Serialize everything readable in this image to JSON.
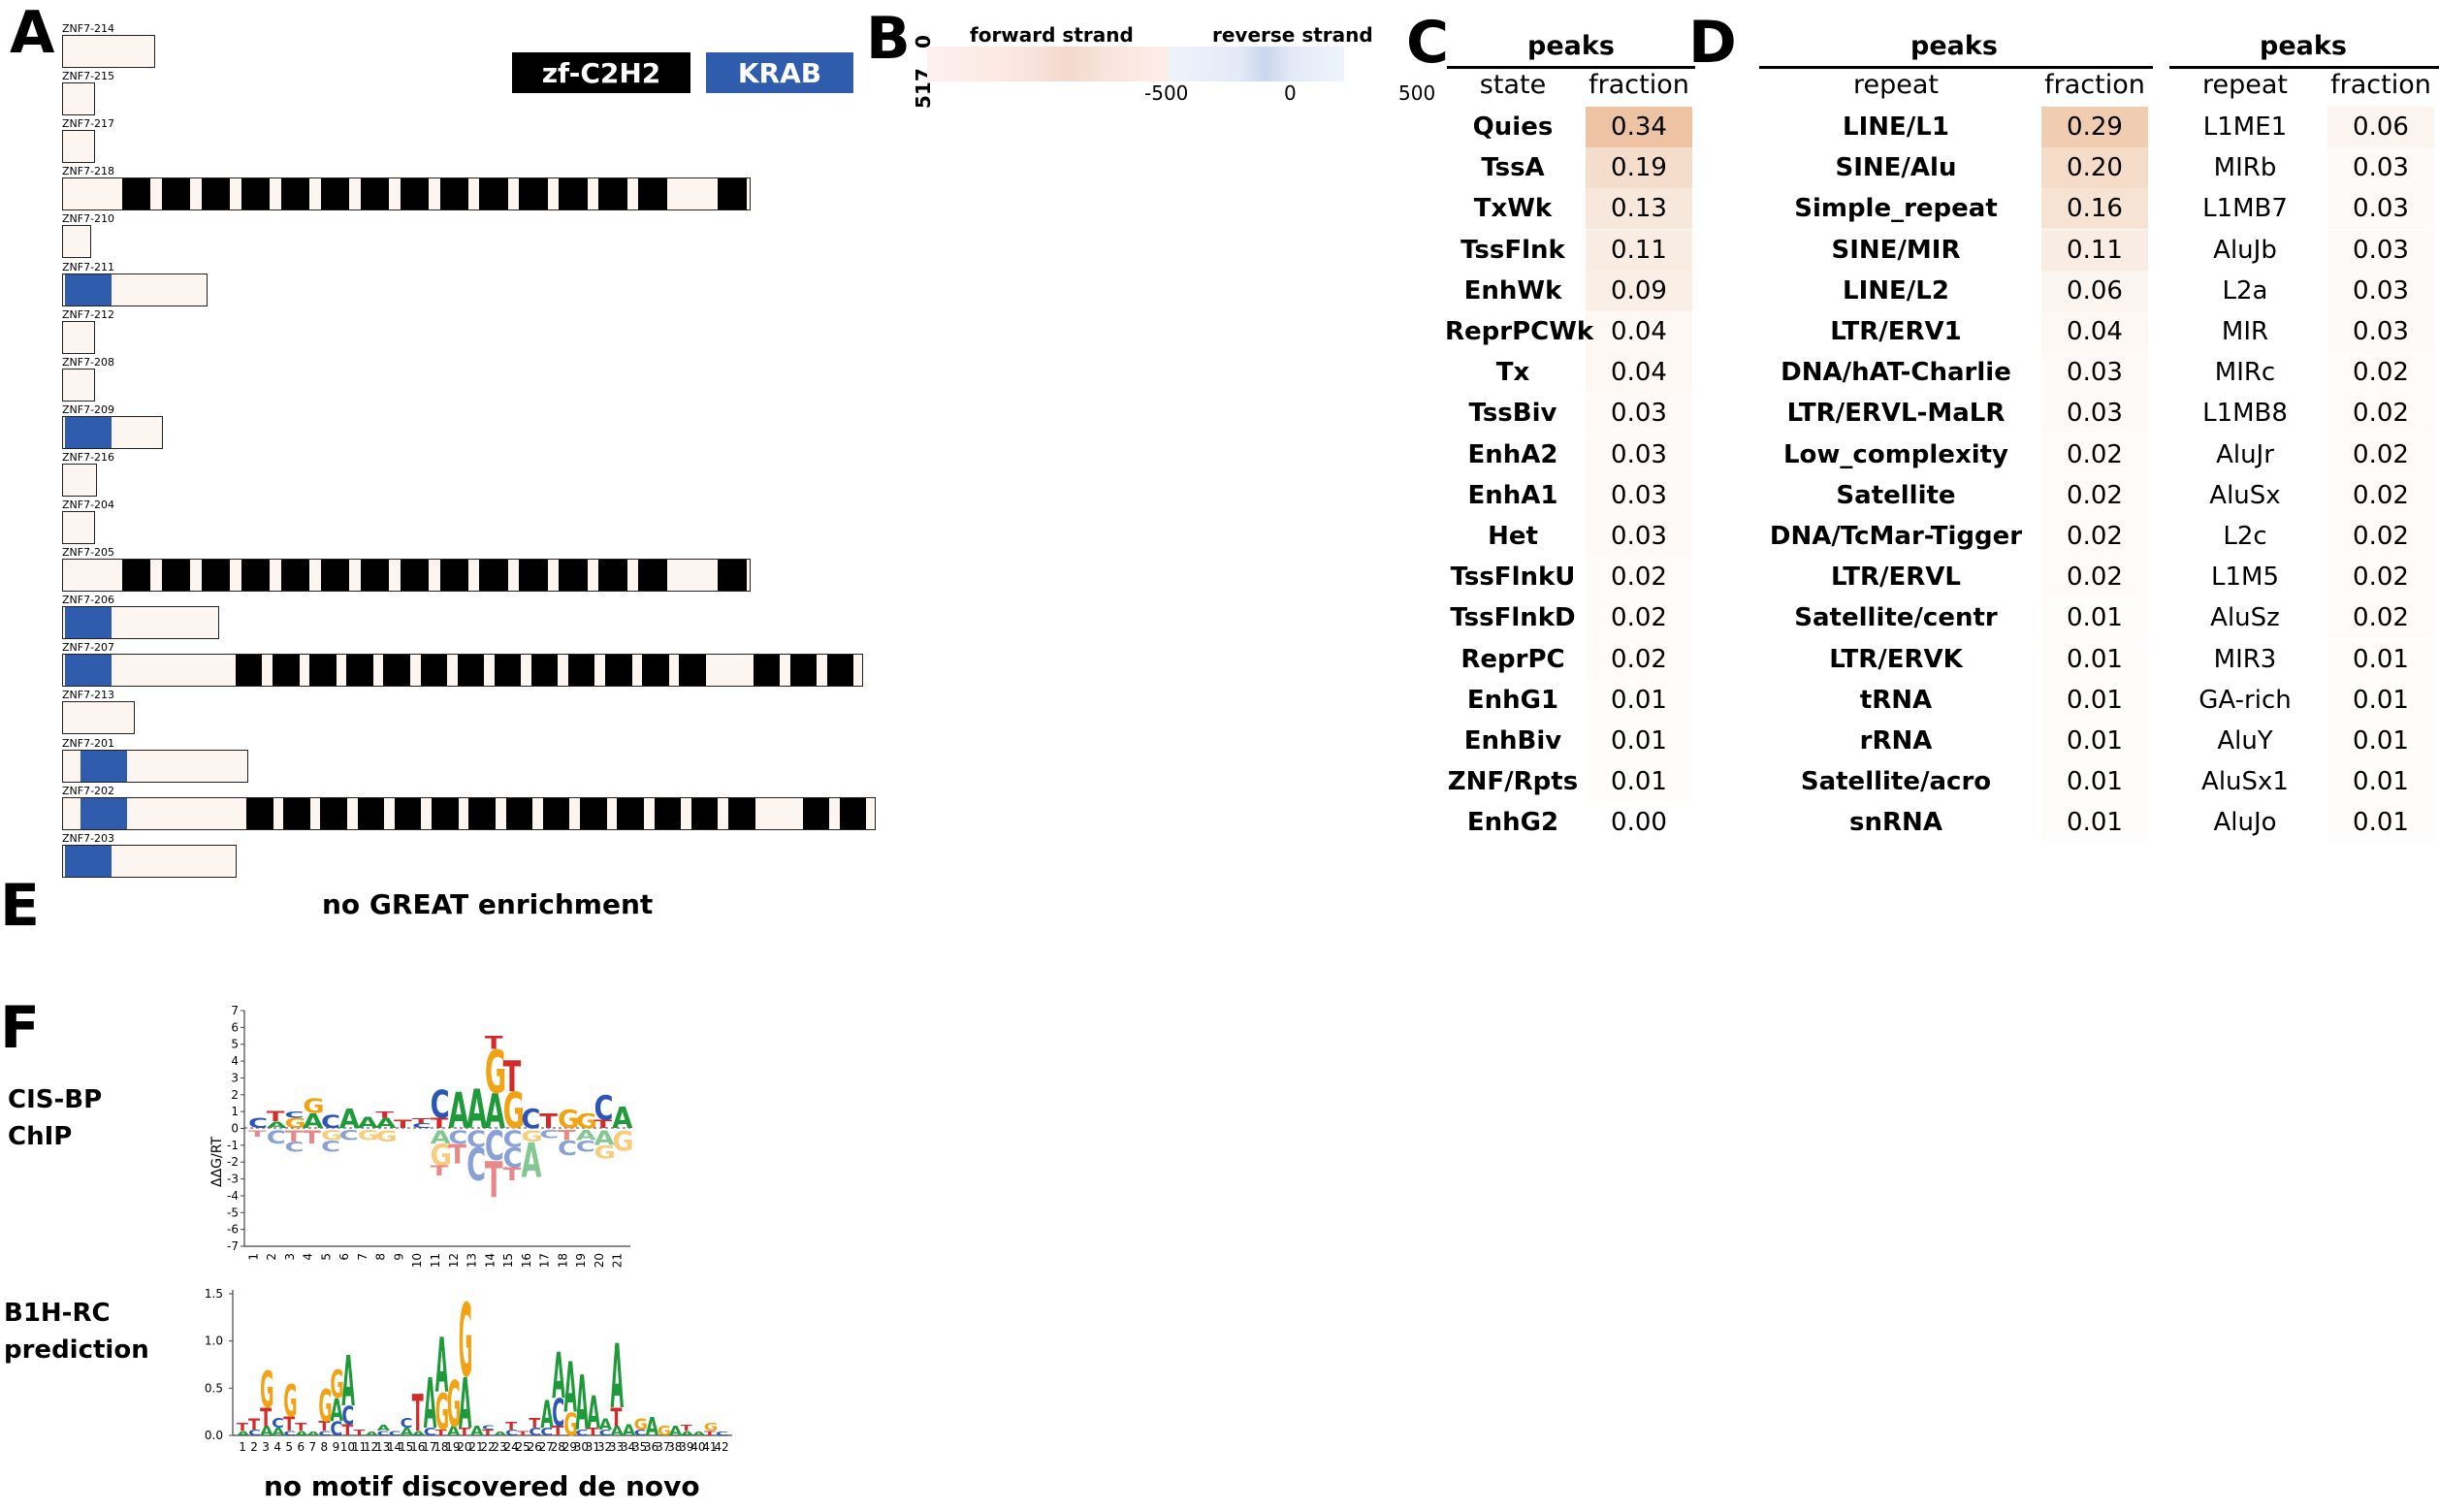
{
  "panels": {
    "A": "A",
    "B": "B",
    "C": "C",
    "D": "D",
    "E": "E",
    "F": "F"
  },
  "panelA": {
    "legend": {
      "zf": "zf-C2H2",
      "krab": "KRAB",
      "zf_color": "#000000",
      "krab_color": "#2f5cad"
    },
    "isoforms": [
      {
        "label": "ZNF7-214",
        "krab": false,
        "zf": false
      },
      {
        "label": "ZNF7-215",
        "krab": false,
        "zf": false
      },
      {
        "label": "ZNF7-217",
        "krab": false,
        "zf": false
      },
      {
        "label": "ZNF7-218",
        "krab": false,
        "zf": true
      },
      {
        "label": "ZNF7-210",
        "krab": false,
        "zf": false
      },
      {
        "label": "ZNF7-211",
        "krab": true,
        "zf": false
      },
      {
        "label": "ZNF7-212",
        "krab": false,
        "zf": false
      },
      {
        "label": "ZNF7-208",
        "krab": false,
        "zf": false
      },
      {
        "label": "ZNF7-209",
        "krab": true,
        "zf": false
      },
      {
        "label": "ZNF7-216",
        "krab": false,
        "zf": false
      },
      {
        "label": "ZNF7-204",
        "krab": false,
        "zf": false
      },
      {
        "label": "ZNF7-205",
        "krab": false,
        "zf": true
      },
      {
        "label": "ZNF7-206",
        "krab": true,
        "zf": false
      },
      {
        "label": "ZNF7-207",
        "krab": true,
        "zf": true
      },
      {
        "label": "ZNF7-213",
        "krab": false,
        "zf": false
      },
      {
        "label": "ZNF7-201",
        "krab": true,
        "zf": false
      },
      {
        "label": "ZNF7-202",
        "krab": true,
        "zf": true
      },
      {
        "label": "ZNF7-203",
        "krab": true,
        "zf": false
      }
    ]
  },
  "panelB": {
    "forward_label": "forward strand",
    "reverse_label": "reverse strand",
    "y_top": "0",
    "y_bottom": "517",
    "x_ticks": [
      "-500",
      "0",
      "500"
    ]
  },
  "panelC": {
    "header": "peaks",
    "col_state": "state",
    "col_fraction": "fraction",
    "rows": [
      {
        "state": "Quies",
        "fraction": "0.34",
        "value": 0.34
      },
      {
        "state": "TssA",
        "fraction": "0.19",
        "value": 0.19
      },
      {
        "state": "TxWk",
        "fraction": "0.13",
        "value": 0.13
      },
      {
        "state": "TssFlnk",
        "fraction": "0.11",
        "value": 0.11
      },
      {
        "state": "EnhWk",
        "fraction": "0.09",
        "value": 0.09
      },
      {
        "state": "ReprPCWk",
        "fraction": "0.04",
        "value": 0.04
      },
      {
        "state": "Tx",
        "fraction": "0.04",
        "value": 0.04
      },
      {
        "state": "TssBiv",
        "fraction": "0.03",
        "value": 0.03
      },
      {
        "state": "EnhA2",
        "fraction": "0.03",
        "value": 0.03
      },
      {
        "state": "EnhA1",
        "fraction": "0.03",
        "value": 0.03
      },
      {
        "state": "Het",
        "fraction": "0.03",
        "value": 0.03
      },
      {
        "state": "TssFlnkU",
        "fraction": "0.02",
        "value": 0.02
      },
      {
        "state": "TssFlnkD",
        "fraction": "0.02",
        "value": 0.02
      },
      {
        "state": "ReprPC",
        "fraction": "0.02",
        "value": 0.02
      },
      {
        "state": "EnhG1",
        "fraction": "0.01",
        "value": 0.01
      },
      {
        "state": "EnhBiv",
        "fraction": "0.01",
        "value": 0.01
      },
      {
        "state": "ZNF/Rpts",
        "fraction": "0.01",
        "value": 0.01
      },
      {
        "state": "EnhG2",
        "fraction": "0.00",
        "value": 0.0
      }
    ]
  },
  "panelD": {
    "header1": "peaks",
    "header2": "peaks",
    "col_repeat": "repeat",
    "col_fraction": "fraction",
    "col_repeat2": "repeat",
    "col_fraction2": "fraction",
    "families": [
      {
        "repeat": "LINE/L1",
        "fraction": "0.29",
        "value": 0.29
      },
      {
        "repeat": "SINE/Alu",
        "fraction": "0.20",
        "value": 0.2
      },
      {
        "repeat": "Simple_repeat",
        "fraction": "0.16",
        "value": 0.16
      },
      {
        "repeat": "SINE/MIR",
        "fraction": "0.11",
        "value": 0.11
      },
      {
        "repeat": "LINE/L2",
        "fraction": "0.06",
        "value": 0.06
      },
      {
        "repeat": "LTR/ERV1",
        "fraction": "0.04",
        "value": 0.04
      },
      {
        "repeat": "DNA/hAT-Charlie",
        "fraction": "0.03",
        "value": 0.03
      },
      {
        "repeat": "LTR/ERVL-MaLR",
        "fraction": "0.03",
        "value": 0.03
      },
      {
        "repeat": "Low_complexity",
        "fraction": "0.02",
        "value": 0.02
      },
      {
        "repeat": "Satellite",
        "fraction": "0.02",
        "value": 0.02
      },
      {
        "repeat": "DNA/TcMar-Tigger",
        "fraction": "0.02",
        "value": 0.02
      },
      {
        "repeat": "LTR/ERVL",
        "fraction": "0.02",
        "value": 0.02
      },
      {
        "repeat": "Satellite/centr",
        "fraction": "0.01",
        "value": 0.01
      },
      {
        "repeat": "LTR/ERVK",
        "fraction": "0.01",
        "value": 0.01
      },
      {
        "repeat": "tRNA",
        "fraction": "0.01",
        "value": 0.01
      },
      {
        "repeat": "rRNA",
        "fraction": "0.01",
        "value": 0.01
      },
      {
        "repeat": "Satellite/acro",
        "fraction": "0.01",
        "value": 0.01
      },
      {
        "repeat": "snRNA",
        "fraction": "0.01",
        "value": 0.01
      }
    ],
    "subfamilies": [
      {
        "repeat": "L1ME1",
        "fraction": "0.06",
        "value": 0.06
      },
      {
        "repeat": "MIRb",
        "fraction": "0.03",
        "value": 0.03
      },
      {
        "repeat": "L1MB7",
        "fraction": "0.03",
        "value": 0.03
      },
      {
        "repeat": "AluJb",
        "fraction": "0.03",
        "value": 0.03
      },
      {
        "repeat": "L2a",
        "fraction": "0.03",
        "value": 0.03
      },
      {
        "repeat": "MIR",
        "fraction": "0.03",
        "value": 0.03
      },
      {
        "repeat": "MIRc",
        "fraction": "0.02",
        "value": 0.02
      },
      {
        "repeat": "L1MB8",
        "fraction": "0.02",
        "value": 0.02
      },
      {
        "repeat": "AluJr",
        "fraction": "0.02",
        "value": 0.02
      },
      {
        "repeat": "AluSx",
        "fraction": "0.02",
        "value": 0.02
      },
      {
        "repeat": "L2c",
        "fraction": "0.02",
        "value": 0.02
      },
      {
        "repeat": "L1M5",
        "fraction": "0.02",
        "value": 0.02
      },
      {
        "repeat": "AluSz",
        "fraction": "0.02",
        "value": 0.02
      },
      {
        "repeat": "MIR3",
        "fraction": "0.01",
        "value": 0.01
      },
      {
        "repeat": "GA-rich",
        "fraction": "0.01",
        "value": 0.01
      },
      {
        "repeat": "AluY",
        "fraction": "0.01",
        "value": 0.01
      },
      {
        "repeat": "AluSx1",
        "fraction": "0.01",
        "value": 0.01
      },
      {
        "repeat": "AluJo",
        "fraction": "0.01",
        "value": 0.01
      }
    ]
  },
  "panelE": {
    "text": "no GREAT enrichment"
  },
  "panelF": {
    "cisbp_label": "CIS-BP\nChIP",
    "b1h_label": "B1H-RC\nprediction",
    "ylabel_cisbp": "ΔΔG/RT",
    "cisbp_yticks": [
      "7",
      "6",
      "5",
      "4",
      "3",
      "2",
      "1",
      "0",
      "-1",
      "-2",
      "-3",
      "-4",
      "-5",
      "-6",
      "-7"
    ],
    "cisbp_positions": [
      "1",
      "2",
      "3",
      "4",
      "5",
      "6",
      "7",
      "8",
      "9",
      "10",
      "11",
      "12",
      "13",
      "14",
      "15",
      "16",
      "17",
      "18",
      "19",
      "20",
      "21"
    ],
    "b1h_yticks": [
      "1.5",
      "1.0",
      "0.5",
      "0.0"
    ],
    "b1h_positions": [
      "1",
      "2",
      "3",
      "4",
      "5",
      "6",
      "7",
      "8",
      "9",
      "10",
      "11",
      "12",
      "13",
      "14",
      "15",
      "16",
      "17",
      "18",
      "19",
      "20",
      "21",
      "22",
      "23",
      "24",
      "25",
      "26",
      "27",
      "28",
      "29",
      "30",
      "31",
      "32",
      "33",
      "34",
      "35",
      "36",
      "37",
      "38",
      "39",
      "40",
      "41",
      "42"
    ],
    "footer": "no motif discovered de novo"
  }
}
